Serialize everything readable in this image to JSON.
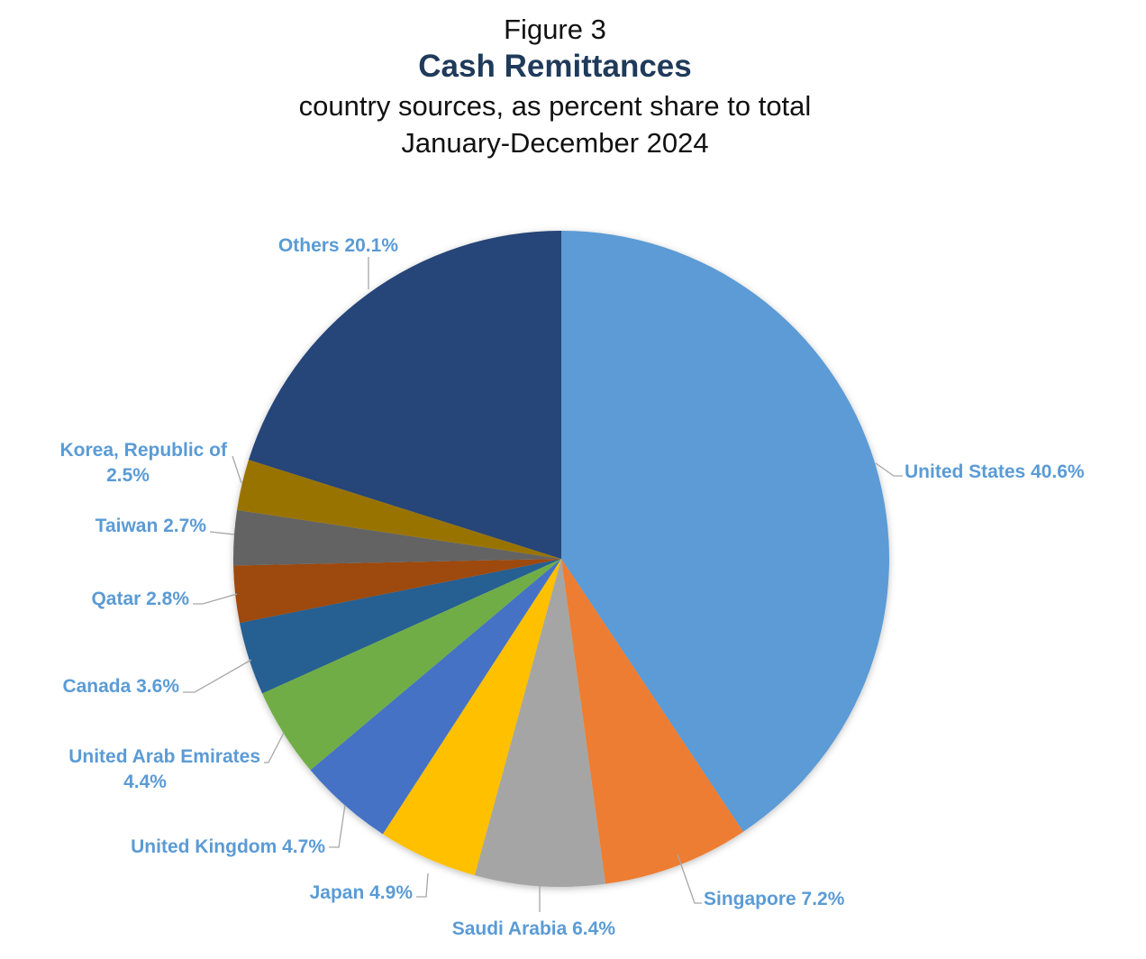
{
  "figure": {
    "label": "Figure 3",
    "title": "Cash Remittances",
    "subtitle": "country sources, as percent share to total",
    "period": "January-December 2024"
  },
  "chart_data": {
    "type": "pie",
    "title": "Cash Remittances",
    "subtitle": "country sources, as percent share to total",
    "period": "January-December 2024",
    "unit": "%",
    "slices": [
      {
        "label": "United States",
        "value": 40.6,
        "color": "#5b9bd5",
        "text": [
          "United States 40.6%"
        ]
      },
      {
        "label": "Singapore",
        "value": 7.2,
        "color": "#ed7d31",
        "text": [
          "Singapore 7.2%"
        ]
      },
      {
        "label": "Saudi Arabia",
        "value": 6.4,
        "color": "#a5a5a5",
        "text": [
          "Saudi Arabia 6.4%"
        ]
      },
      {
        "label": "Japan",
        "value": 4.9,
        "color": "#ffc000",
        "text": [
          "Japan 4.9%"
        ]
      },
      {
        "label": "United Kingdom",
        "value": 4.7,
        "color": "#4472c4",
        "text": [
          "United Kingdom 4.7%"
        ]
      },
      {
        "label": "United Arab Emirates",
        "value": 4.4,
        "color": "#70ad47",
        "text": [
          "United Arab Emirates",
          "4.4%"
        ]
      },
      {
        "label": "Canada",
        "value": 3.6,
        "color": "#255e91",
        "text": [
          "Canada 3.6%"
        ]
      },
      {
        "label": "Qatar",
        "value": 2.8,
        "color": "#9e480e",
        "text": [
          "Qatar 2.8%"
        ]
      },
      {
        "label": "Taiwan",
        "value": 2.7,
        "color": "#636363",
        "text": [
          "Taiwan 2.7%"
        ]
      },
      {
        "label": "Korea, Republic of",
        "value": 2.5,
        "color": "#997300",
        "text": [
          "Korea, Republic of",
          "2.5%"
        ]
      },
      {
        "label": "Others",
        "value": 20.1,
        "color": "#264478",
        "text": [
          "Others 20.1%"
        ]
      }
    ],
    "label_color": "#5b9bd5",
    "legend": "none"
  }
}
